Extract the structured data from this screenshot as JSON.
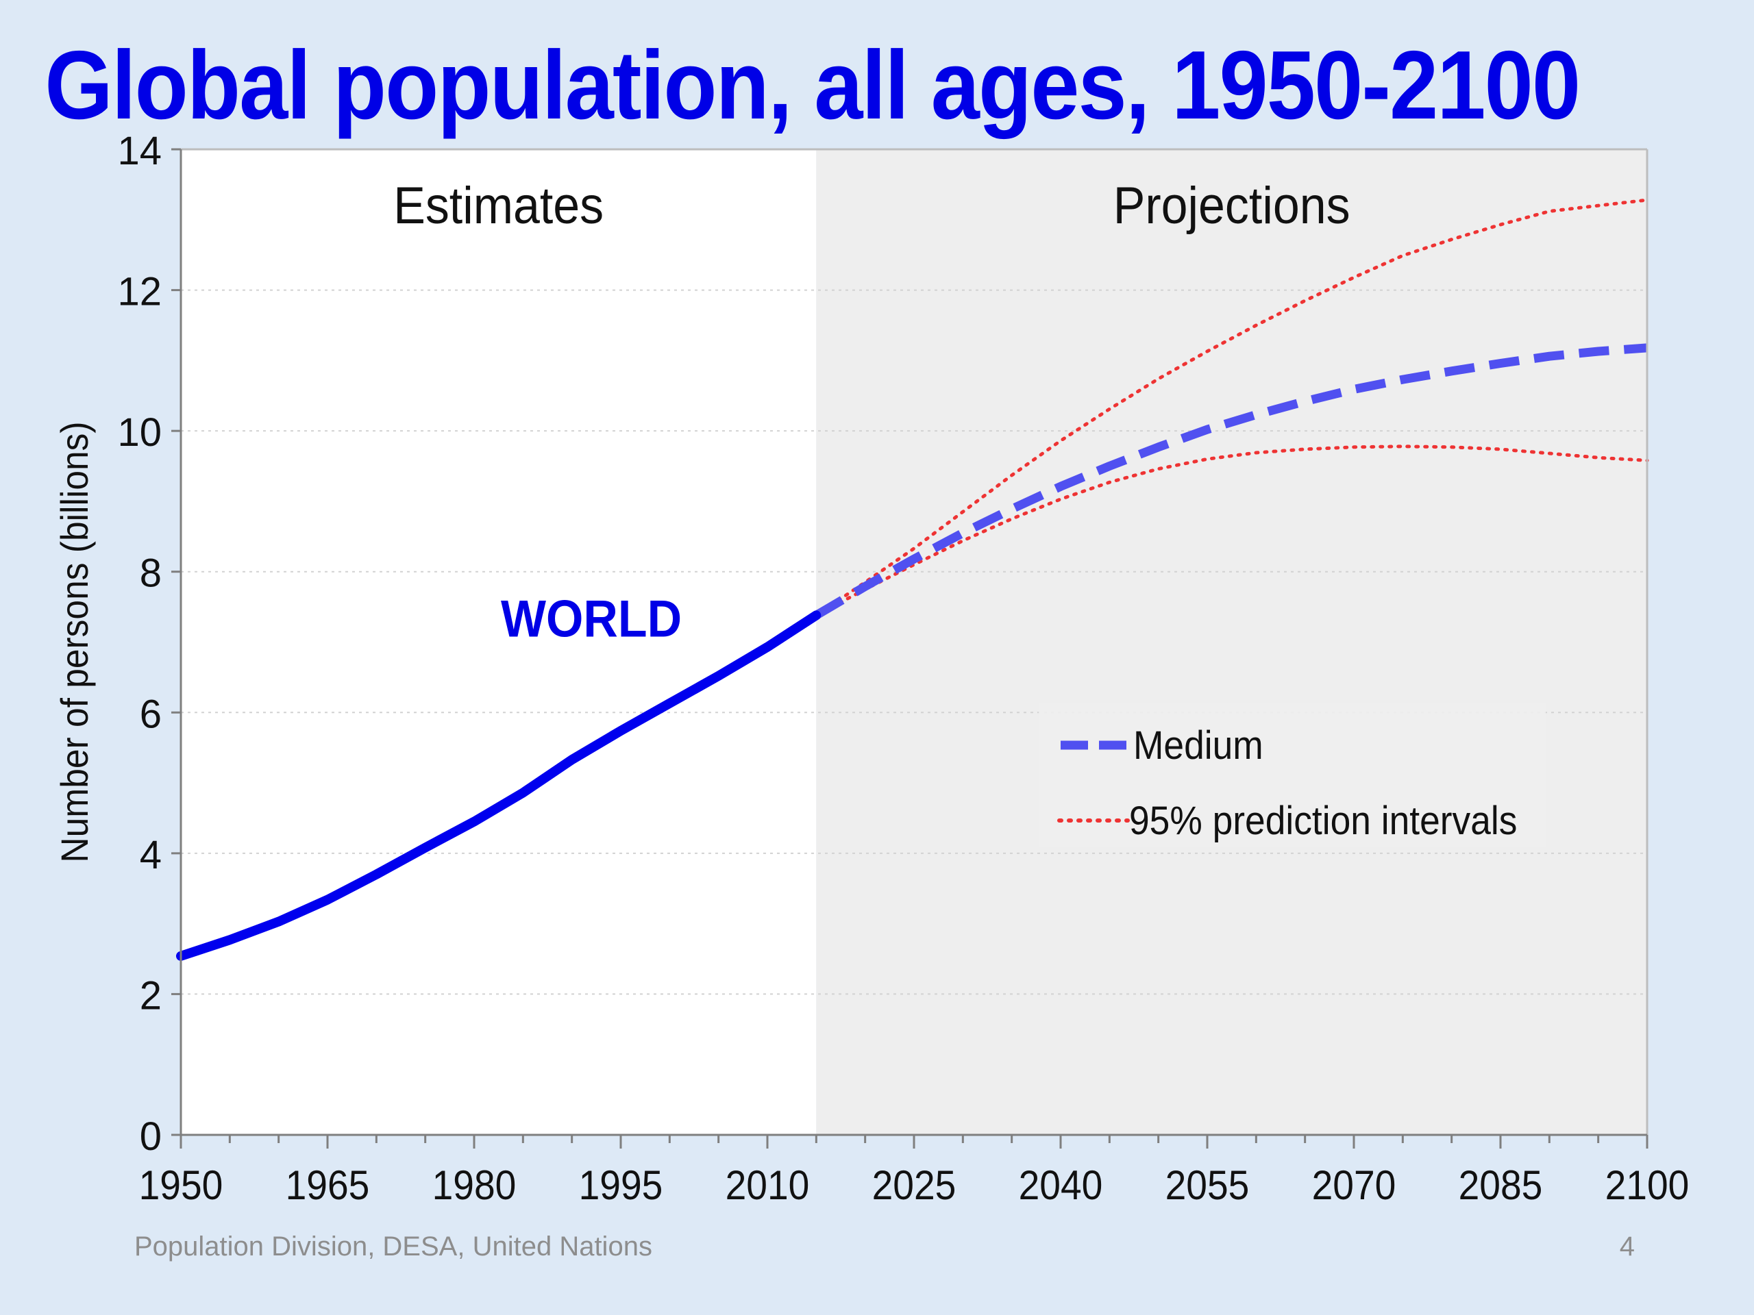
{
  "slide": {
    "title": "Global population, all ages, 1950-2100",
    "footer": "Population Division, DESA, United Nations",
    "page_number": "4"
  },
  "colors": {
    "background": "#dde9f6",
    "title": "#0000e6",
    "estimates_line": "#0000ee",
    "medium_line": "#5050f0",
    "interval_line": "#ee3333",
    "projection_panel": "#eeeeee",
    "estimate_panel": "#ffffff"
  },
  "chart_data": {
    "type": "line",
    "title": "Global population, all ages, 1950-2100",
    "xlabel": "",
    "ylabel": "Number of persons (billions)",
    "xlim": [
      1950,
      2100
    ],
    "ylim": [
      0,
      14
    ],
    "x_ticks": [
      1950,
      1965,
      1980,
      1995,
      2010,
      2025,
      2040,
      2055,
      2070,
      2085,
      2100
    ],
    "y_ticks": [
      0,
      2,
      4,
      6,
      8,
      10,
      12,
      14
    ],
    "grid": "horizontal dotted",
    "regions": [
      {
        "label": "Estimates",
        "from": 1950,
        "to": 2015
      },
      {
        "label": "Projections",
        "from": 2015,
        "to": 2100
      }
    ],
    "annotations": [
      {
        "text": "WORLD",
        "x": 1999,
        "y": 7.8
      }
    ],
    "legend_position": "right-middle",
    "series": [
      {
        "name": "",
        "role": "estimates",
        "style": "solid",
        "points": [
          [
            1950,
            2.54
          ],
          [
            1955,
            2.77
          ],
          [
            1960,
            3.03
          ],
          [
            1965,
            3.34
          ],
          [
            1970,
            3.7
          ],
          [
            1975,
            4.08
          ],
          [
            1980,
            4.45
          ],
          [
            1985,
            4.86
          ],
          [
            1990,
            5.33
          ],
          [
            1995,
            5.74
          ],
          [
            2000,
            6.13
          ],
          [
            2005,
            6.52
          ],
          [
            2010,
            6.93
          ],
          [
            2015,
            7.38
          ]
        ]
      },
      {
        "name": "Medium",
        "role": "medium",
        "style": "dashed",
        "points": [
          [
            2015,
            7.38
          ],
          [
            2020,
            7.79
          ],
          [
            2025,
            8.18
          ],
          [
            2030,
            8.55
          ],
          [
            2035,
            8.89
          ],
          [
            2040,
            9.21
          ],
          [
            2045,
            9.5
          ],
          [
            2050,
            9.77
          ],
          [
            2055,
            10.02
          ],
          [
            2060,
            10.23
          ],
          [
            2065,
            10.42
          ],
          [
            2070,
            10.59
          ],
          [
            2075,
            10.73
          ],
          [
            2080,
            10.85
          ],
          [
            2085,
            10.96
          ],
          [
            2090,
            11.06
          ],
          [
            2095,
            11.13
          ],
          [
            2100,
            11.18
          ]
        ]
      },
      {
        "name": "95% prediction intervals",
        "role": "upper",
        "style": "dotted",
        "points": [
          [
            2015,
            7.38
          ],
          [
            2020,
            7.85
          ],
          [
            2025,
            8.33
          ],
          [
            2030,
            8.85
          ],
          [
            2035,
            9.37
          ],
          [
            2040,
            9.86
          ],
          [
            2045,
            10.31
          ],
          [
            2050,
            10.74
          ],
          [
            2055,
            11.13
          ],
          [
            2060,
            11.5
          ],
          [
            2065,
            11.85
          ],
          [
            2070,
            12.18
          ],
          [
            2075,
            12.49
          ],
          [
            2080,
            12.72
          ],
          [
            2085,
            12.93
          ],
          [
            2090,
            13.12
          ],
          [
            2095,
            13.2
          ],
          [
            2100,
            13.28
          ]
        ]
      },
      {
        "name": "95% prediction intervals",
        "role": "lower",
        "style": "dotted",
        "points": [
          [
            2015,
            7.38
          ],
          [
            2020,
            7.75
          ],
          [
            2025,
            8.1
          ],
          [
            2030,
            8.44
          ],
          [
            2035,
            8.75
          ],
          [
            2040,
            9.03
          ],
          [
            2045,
            9.27
          ],
          [
            2050,
            9.46
          ],
          [
            2055,
            9.6
          ],
          [
            2060,
            9.69
          ],
          [
            2065,
            9.74
          ],
          [
            2070,
            9.77
          ],
          [
            2075,
            9.78
          ],
          [
            2080,
            9.77
          ],
          [
            2085,
            9.74
          ],
          [
            2090,
            9.68
          ],
          [
            2095,
            9.62
          ],
          [
            2100,
            9.58
          ]
        ]
      }
    ],
    "legend": [
      {
        "label": "Medium",
        "style": "dashed"
      },
      {
        "label": "95% prediction intervals",
        "style": "dotted"
      }
    ]
  }
}
